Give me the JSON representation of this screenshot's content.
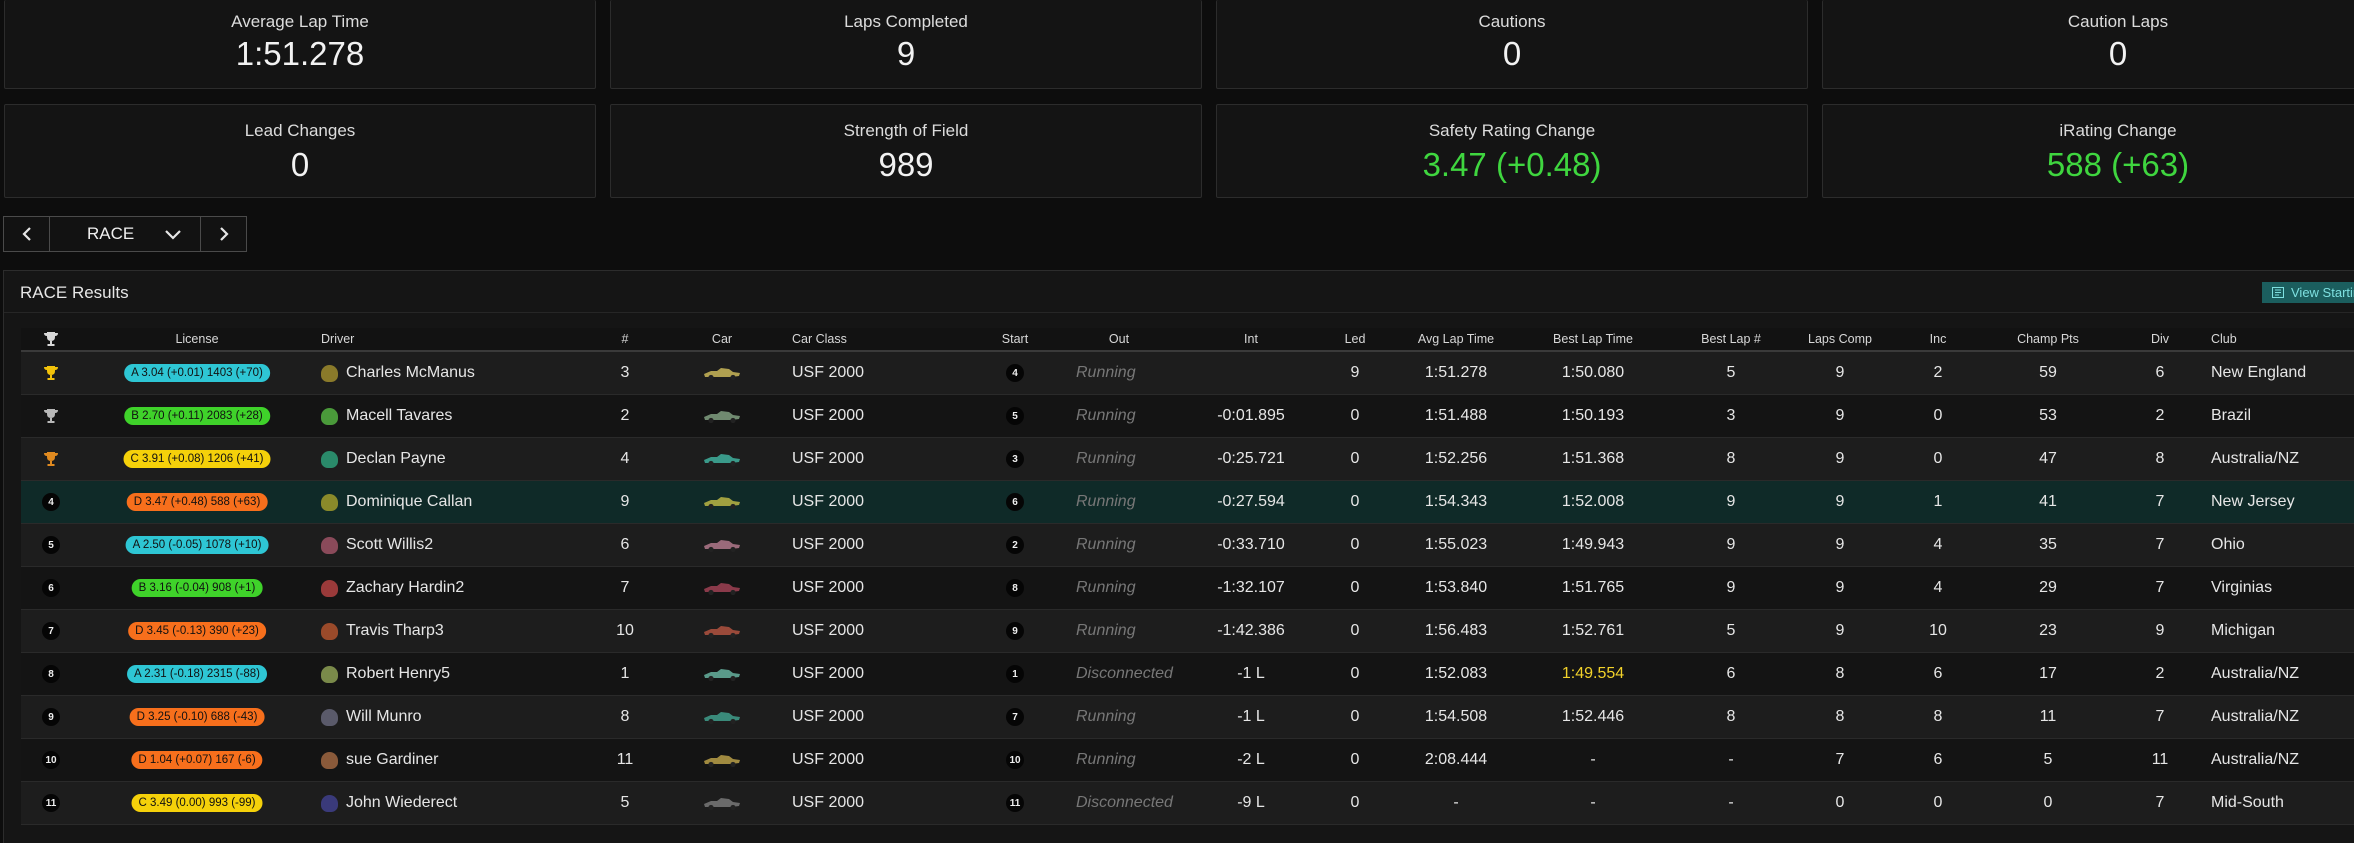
{
  "stats": [
    {
      "label": "Average Lap Time",
      "value": "1:51.278",
      "highlight": false
    },
    {
      "label": "Laps Completed",
      "value": "9",
      "highlight": false
    },
    {
      "label": "Cautions",
      "value": "0",
      "highlight": false
    },
    {
      "label": "Caution Laps",
      "value": "0",
      "highlight": false
    },
    {
      "label": "Lead Changes",
      "value": "0",
      "highlight": false
    },
    {
      "label": "Strength of Field",
      "value": "989",
      "highlight": false
    },
    {
      "label": "Safety Rating Change",
      "value": "3.47 (+0.48)",
      "highlight": true
    },
    {
      "label": "iRating Change",
      "value": "588 (+63)",
      "highlight": true
    }
  ],
  "session_nav": {
    "selected": "RACE"
  },
  "results": {
    "title": "RACE Results",
    "view_button": "View Startin",
    "columns": [
      "License",
      "Driver",
      "#",
      "Car",
      "Car Class",
      "Start",
      "Out",
      "Int",
      "Led",
      "Avg Lap Time",
      "Best Lap Time",
      "Best Lap #",
      "Laps Comp",
      "Inc",
      "Champ Pts",
      "Div",
      "Club"
    ],
    "rows": [
      {
        "pos": "1",
        "trophy": "gold",
        "license": "A 3.04 (+0.01) 1403 (+70)",
        "lic": "A",
        "helmet": "#8a7a2a",
        "driver": "Charles McManus",
        "num": "3",
        "car": "#b0a050",
        "class": "USF 2000",
        "start": "4",
        "out": "Running",
        "int": "",
        "led": "9",
        "avg": "1:51.278",
        "best": "1:50.080",
        "bestgold": false,
        "bestlap": "5",
        "laps": "9",
        "inc": "2",
        "pts": "59",
        "div": "6",
        "club": "New England"
      },
      {
        "pos": "2",
        "trophy": "silver",
        "license": "B 2.70 (+0.11) 2083 (+28)",
        "lic": "B",
        "helmet": "#4a9a3a",
        "driver": "Macell Tavares",
        "num": "2",
        "car": "#708a70",
        "class": "USF 2000",
        "start": "5",
        "out": "Running",
        "int": "-0:01.895",
        "led": "0",
        "avg": "1:51.488",
        "best": "1:50.193",
        "bestgold": false,
        "bestlap": "3",
        "laps": "9",
        "inc": "0",
        "pts": "53",
        "div": "2",
        "club": "Brazil"
      },
      {
        "pos": "3",
        "trophy": "bronze",
        "license": "C 3.91 (+0.08) 1206 (+41)",
        "lic": "C",
        "helmet": "#2a8a6a",
        "driver": "Declan Payne",
        "num": "4",
        "car": "#3a9a8a",
        "class": "USF 2000",
        "start": "3",
        "out": "Running",
        "int": "-0:25.721",
        "led": "0",
        "avg": "1:52.256",
        "best": "1:51.368",
        "bestgold": false,
        "bestlap": "8",
        "laps": "9",
        "inc": "0",
        "pts": "47",
        "div": "8",
        "club": "Australia/NZ"
      },
      {
        "pos": "4",
        "trophy": "",
        "license": "D 3.47 (+0.48) 588 (+63)",
        "lic": "D",
        "helmet": "#8a8a2a",
        "driver": "Dominique Callan",
        "num": "9",
        "car": "#a0a040",
        "class": "USF 2000",
        "start": "6",
        "out": "Running",
        "int": "-0:27.594",
        "led": "0",
        "avg": "1:54.343",
        "best": "1:52.008",
        "bestgold": false,
        "bestlap": "9",
        "laps": "9",
        "inc": "1",
        "pts": "41",
        "div": "7",
        "club": "New Jersey"
      },
      {
        "pos": "5",
        "trophy": "",
        "license": "A 2.50 (-0.05) 1078 (+10)",
        "lic": "A",
        "helmet": "#8a4a5a",
        "driver": "Scott Willis2",
        "num": "6",
        "car": "#9a6a7a",
        "class": "USF 2000",
        "start": "2",
        "out": "Running",
        "int": "-0:33.710",
        "led": "0",
        "avg": "1:55.023",
        "best": "1:49.943",
        "bestgold": false,
        "bestlap": "9",
        "laps": "9",
        "inc": "4",
        "pts": "35",
        "div": "7",
        "club": "Ohio"
      },
      {
        "pos": "6",
        "trophy": "",
        "license": "B 3.16 (-0.04) 908 (+1)",
        "lic": "B",
        "helmet": "#9a3a3a",
        "driver": "Zachary Hardin2",
        "num": "7",
        "car": "#8a3a4a",
        "class": "USF 2000",
        "start": "8",
        "out": "Running",
        "int": "-1:32.107",
        "led": "0",
        "avg": "1:53.840",
        "best": "1:51.765",
        "bestgold": false,
        "bestlap": "9",
        "laps": "9",
        "inc": "4",
        "pts": "29",
        "div": "7",
        "club": "Virginias"
      },
      {
        "pos": "7",
        "trophy": "",
        "license": "D 3.45 (-0.13) 390 (+23)",
        "lic": "D",
        "helmet": "#9a4a2a",
        "driver": "Travis Tharp3",
        "num": "10",
        "car": "#9a4a3a",
        "class": "USF 2000",
        "start": "9",
        "out": "Running",
        "int": "-1:42.386",
        "led": "0",
        "avg": "1:56.483",
        "best": "1:52.761",
        "bestgold": false,
        "bestlap": "5",
        "laps": "9",
        "inc": "10",
        "pts": "23",
        "div": "9",
        "club": "Michigan"
      },
      {
        "pos": "8",
        "trophy": "",
        "license": "A 2.31 (-0.18) 2315 (-88)",
        "lic": "A",
        "helmet": "#7a8a4a",
        "driver": "Robert Henry5",
        "num": "1",
        "car": "#5a9a8a",
        "class": "USF 2000",
        "start": "1",
        "out": "Disconnected",
        "int": "-1 L",
        "led": "0",
        "avg": "1:52.083",
        "best": "1:49.554",
        "bestgold": true,
        "bestlap": "6",
        "laps": "8",
        "inc": "6",
        "pts": "17",
        "div": "2",
        "club": "Australia/NZ"
      },
      {
        "pos": "9",
        "trophy": "",
        "license": "D 3.25 (-0.10) 688 (-43)",
        "lic": "D",
        "helmet": "#5a5a6a",
        "driver": "Will Munro",
        "num": "8",
        "car": "#3a8a7a",
        "class": "USF 2000",
        "start": "7",
        "out": "Running",
        "int": "-1 L",
        "led": "0",
        "avg": "1:54.508",
        "best": "1:52.446",
        "bestgold": false,
        "bestlap": "8",
        "laps": "8",
        "inc": "8",
        "pts": "11",
        "div": "7",
        "club": "Australia/NZ"
      },
      {
        "pos": "10",
        "trophy": "",
        "license": "D 1.04 (+0.07) 167 (-6)",
        "lic": "D",
        "helmet": "#8a5a3a",
        "driver": "sue Gardiner",
        "num": "11",
        "car": "#a08a40",
        "class": "USF 2000",
        "start": "10",
        "out": "Running",
        "int": "-2 L",
        "led": "0",
        "avg": "2:08.444",
        "best": "-",
        "bestgold": false,
        "bestlap": "-",
        "laps": "7",
        "inc": "6",
        "pts": "5",
        "div": "11",
        "club": "Australia/NZ"
      },
      {
        "pos": "11",
        "trophy": "",
        "license": "C 3.49 (0.00) 993 (-99)",
        "lic": "C",
        "helmet": "#3a3a7a",
        "driver": "John Wiederect",
        "num": "5",
        "car": "#6a6a6a",
        "class": "USF 2000",
        "start": "11",
        "out": "Disconnected",
        "int": "-9 L",
        "led": "0",
        "avg": "-",
        "best": "-",
        "bestgold": false,
        "bestlap": "-",
        "laps": "0",
        "inc": "0",
        "pts": "0",
        "div": "7",
        "club": "Mid-South"
      }
    ]
  },
  "colors": {
    "accent_green": "#3fd63f",
    "best_lap_gold": "#f2d22a",
    "license_A": "#2ec6d4",
    "license_B": "#3fd22a",
    "license_C": "#f5d10a",
    "license_D": "#f76f1c"
  }
}
